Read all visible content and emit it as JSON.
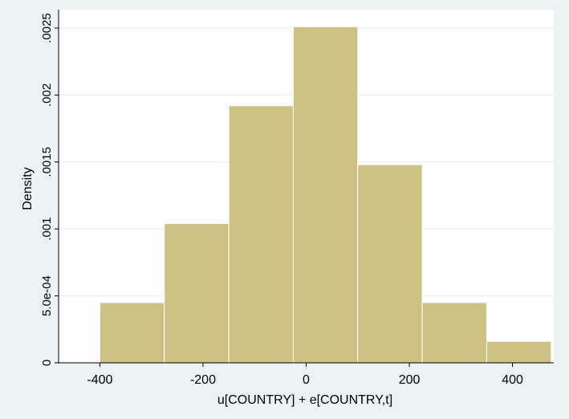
{
  "chart_data": {
    "type": "histogram",
    "title": "",
    "xlabel": "u[COUNTRY] + e[COUNTRY,t]",
    "ylabel": "Density",
    "xlim": [
      -480,
      480
    ],
    "ylim": [
      0,
      0.0025
    ],
    "grid": true,
    "legend": "none",
    "x_ticks": [
      -400,
      -200,
      0,
      200,
      400
    ],
    "x_tick_labels": [
      "-400",
      "-200",
      "0",
      "200",
      "400"
    ],
    "y_ticks": [
      0,
      0.0005,
      0.001,
      0.0015,
      0.002,
      0.0025
    ],
    "y_tick_labels": [
      "0",
      "5.0e-04",
      ".001",
      ".0015",
      ".002",
      ".0025"
    ],
    "bins": [
      {
        "x0": -400,
        "x1": -275,
        "value": 0.00045
      },
      {
        "x0": -275,
        "x1": -150,
        "value": 0.00104
      },
      {
        "x0": -150,
        "x1": -25,
        "value": 0.00192
      },
      {
        "x0": -25,
        "x1": 100,
        "value": 0.00251
      },
      {
        "x0": 100,
        "x1": 225,
        "value": 0.00148
      },
      {
        "x0": 225,
        "x1": 350,
        "value": 0.00045
      },
      {
        "x0": 350,
        "x1": 475,
        "value": 0.00016
      }
    ],
    "colors": {
      "bar_fill": "#cdc283",
      "bar_stroke": "#ffffff",
      "plot_bg": "#ffffff",
      "outer_bg": "#eaf2f3",
      "grid": "#e8eff0",
      "axis": "#000000"
    }
  }
}
